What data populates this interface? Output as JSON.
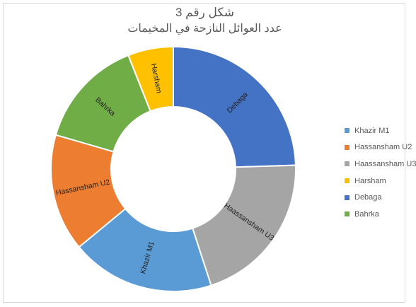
{
  "chart_data": {
    "type": "pie",
    "variant": "doughnut",
    "title": "شكل رقم 3",
    "subtitle": "عدد العوائل النازحة في المخيمات",
    "categories": [
      "Debaga",
      "Haassansham U3",
      "Khazir M1",
      "Hassansham U2",
      "Bahrka",
      "Harsham"
    ],
    "values": [
      24.5,
      20.5,
      19,
      15.5,
      14.5,
      6
    ],
    "colors": {
      "Khazir M1": "#5b9bd5",
      "Hassansham U2": "#ed7d31",
      "Haassansham U3": "#a5a5a5",
      "Harsham": "#ffc000",
      "Debaga": "#4472c4",
      "Bahrka": "#70ad47"
    },
    "legend_position": "right",
    "legend": [
      "Khazir M1",
      "Hassansham U2",
      "Haassansham U3",
      "Harsham",
      "Debaga",
      "Bahrka"
    ]
  }
}
